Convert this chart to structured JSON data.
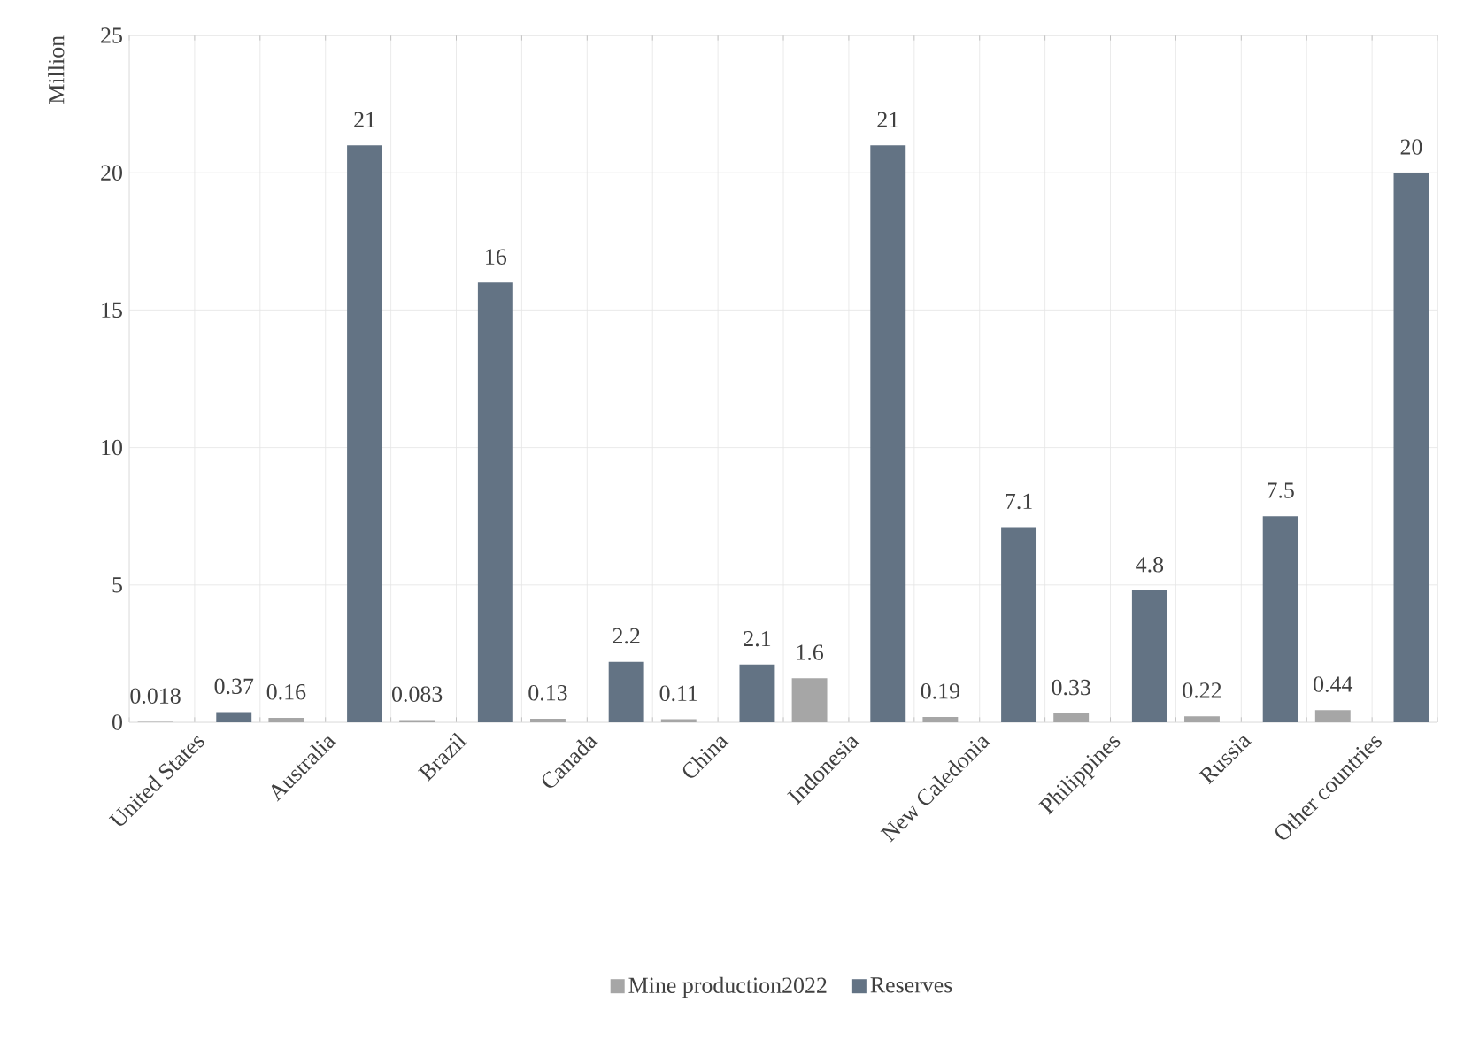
{
  "chart_data": {
    "type": "bar",
    "ylabel": "Million",
    "categories": [
      "United States",
      "Australia",
      "Brazil",
      "Canada",
      "China",
      "Indonesia",
      "New Caledonia",
      "Philippines",
      "Russia",
      "Other countries"
    ],
    "series": [
      {
        "name": "Mine production2022",
        "color": "#a6a6a6",
        "values": [
          0.018,
          0.16,
          0.083,
          0.13,
          0.11,
          1.6,
          0.19,
          0.33,
          0.22,
          0.44
        ]
      },
      {
        "name": "Reserves",
        "color": "#637384",
        "values": [
          0.37,
          21,
          16,
          2.2,
          2.1,
          21,
          7.1,
          4.8,
          7.5,
          20
        ]
      }
    ],
    "ylim": [
      0,
      25
    ],
    "yticks": [
      0,
      5,
      10,
      15,
      20,
      25
    ],
    "grid": true,
    "legend": "bottom",
    "data_labels": true
  }
}
